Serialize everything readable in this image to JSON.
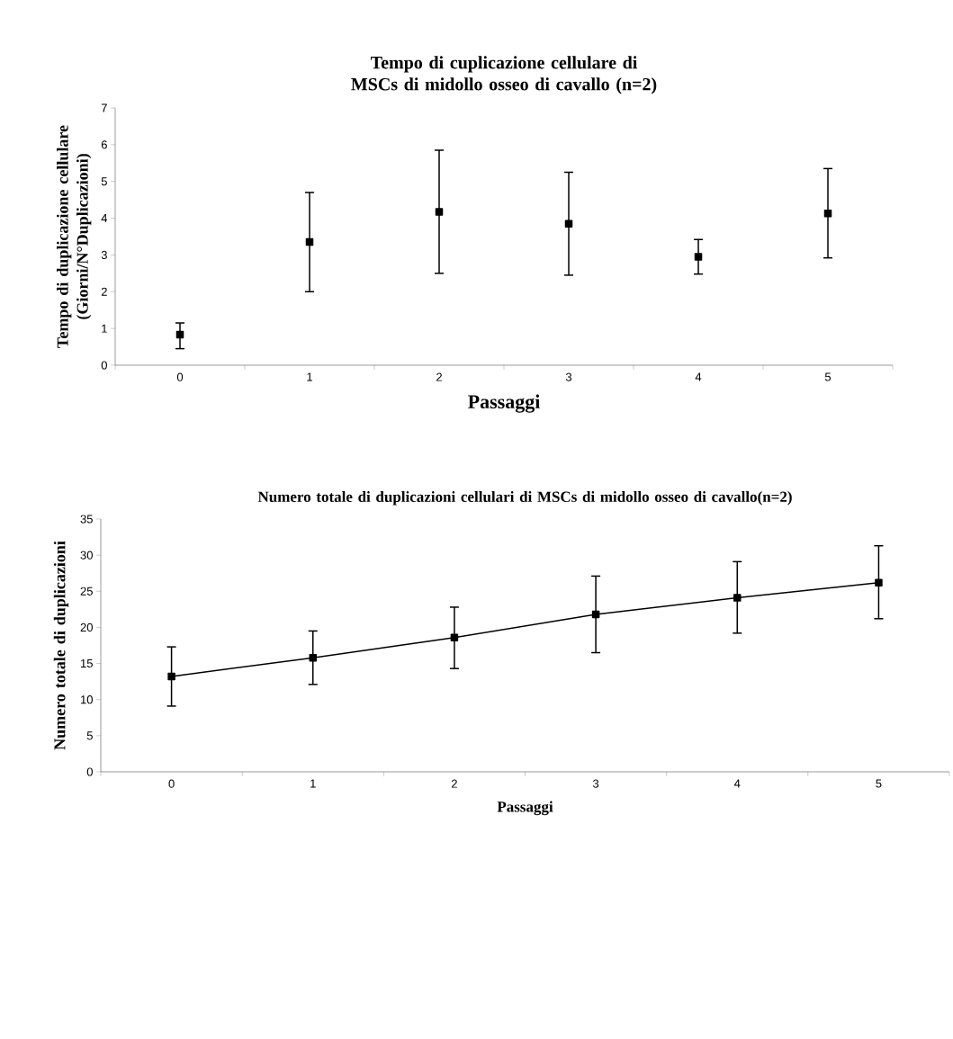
{
  "chart_data": [
    {
      "type": "scatter",
      "title": "Tempo di cuplicazione cellulare di MSCs di midollo osseo di cavallo (n=2)",
      "xlabel": "Passaggi",
      "ylabel": "Tempo di duplicazione cellulare (Giorni/N°Duplicazioni)",
      "categories": [
        "0",
        "1",
        "2",
        "3",
        "4",
        "5"
      ],
      "values": [
        0.83,
        3.35,
        4.17,
        3.85,
        2.95,
        4.13
      ],
      "errors": [
        [
          0.45,
          1.15
        ],
        [
          2.0,
          4.7
        ],
        [
          2.5,
          5.85
        ],
        [
          2.45,
          5.25
        ],
        [
          2.48,
          3.42
        ],
        [
          2.92,
          5.35
        ]
      ],
      "color": "#000000",
      "marker": "square",
      "ylim": [
        0,
        7
      ],
      "yticks": [
        0,
        1,
        2,
        3,
        4,
        5,
        6,
        7
      ],
      "grid": false
    },
    {
      "type": "line",
      "title": "Numero totale di duplicazioni cellulari di MSCs di midollo osseo di cavallo(n=2)",
      "xlabel": "Passaggi",
      "ylabel": "Numero totale di duplicazioni",
      "categories": [
        "0",
        "1",
        "2",
        "3",
        "4",
        "5"
      ],
      "values": [
        13.2,
        15.8,
        18.6,
        21.8,
        24.1,
        26.2
      ],
      "errors": [
        [
          9.1,
          17.3
        ],
        [
          12.1,
          19.5
        ],
        [
          14.3,
          22.8
        ],
        [
          16.5,
          27.1
        ],
        [
          19.2,
          29.1
        ],
        [
          21.2,
          31.3
        ]
      ],
      "color": "#000000",
      "marker": "square",
      "line_style": "solid",
      "ylim": [
        0,
        35
      ],
      "yticks": [
        0,
        5,
        10,
        15,
        20,
        25,
        30,
        35
      ],
      "grid": false
    }
  ]
}
